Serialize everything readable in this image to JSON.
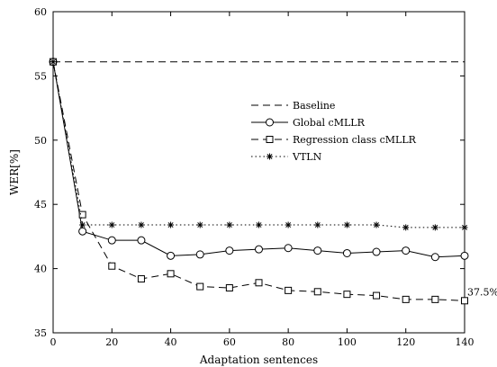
{
  "chart_data": {
    "type": "line",
    "xlabel": "Adaptation sentences",
    "ylabel": "WER[%]",
    "xlim": [
      0,
      140
    ],
    "ylim": [
      35,
      60
    ],
    "xticks": [
      0,
      20,
      40,
      60,
      80,
      100,
      120,
      140
    ],
    "yticks": [
      35,
      40,
      45,
      50,
      55,
      60
    ],
    "grid": false,
    "legend": "center-right",
    "series": [
      {
        "name": "Baseline",
        "style": "dashed",
        "marker": "none",
        "x": [
          0,
          140
        ],
        "y": [
          56.1,
          56.1
        ]
      },
      {
        "name": "Global cMLLR",
        "style": "solid",
        "marker": "circle",
        "x": [
          0,
          10,
          20,
          30,
          40,
          50,
          60,
          70,
          80,
          90,
          100,
          110,
          120,
          130,
          140
        ],
        "y": [
          56.1,
          42.9,
          42.2,
          42.2,
          41.0,
          41.1,
          41.4,
          41.5,
          41.6,
          41.4,
          41.2,
          41.3,
          41.4,
          40.9,
          41.0
        ]
      },
      {
        "name": "Regression class cMLLR",
        "style": "dashed",
        "marker": "square",
        "x": [
          0,
          10,
          20,
          30,
          40,
          50,
          60,
          70,
          80,
          90,
          100,
          110,
          120,
          130,
          140
        ],
        "y": [
          56.1,
          44.2,
          40.2,
          39.2,
          39.6,
          38.6,
          38.5,
          38.9,
          38.3,
          38.2,
          38.0,
          37.9,
          37.6,
          37.6,
          37.5
        ]
      },
      {
        "name": "VTLN",
        "style": "dotted",
        "marker": "star",
        "x": [
          0,
          10,
          20,
          30,
          40,
          50,
          60,
          70,
          80,
          90,
          100,
          110,
          120,
          130,
          140
        ],
        "y": [
          56.1,
          43.4,
          43.4,
          43.4,
          43.4,
          43.4,
          43.4,
          43.4,
          43.4,
          43.4,
          43.4,
          43.4,
          43.2,
          43.2,
          43.2
        ]
      }
    ],
    "annotations": [
      {
        "text": "37.5%",
        "x": 140,
        "y": 37.5
      }
    ]
  }
}
